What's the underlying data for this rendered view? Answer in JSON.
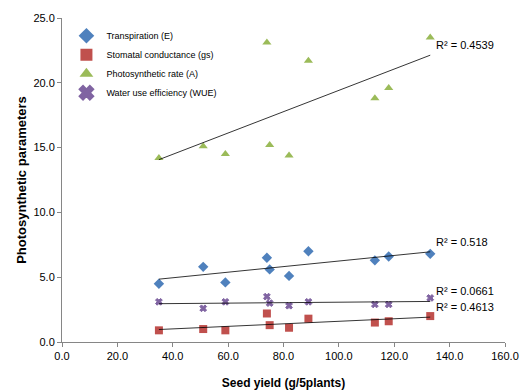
{
  "chart_data": {
    "type": "scatter",
    "x_label": "Seed yield (g/5plants)",
    "y_label": "Photosynthetic parameters",
    "xlim": [
      0,
      160
    ],
    "xticks": [
      {
        "value": 0,
        "label": "0.0"
      },
      {
        "value": 20,
        "label": "20.0"
      },
      {
        "value": 40,
        "label": "40.0"
      },
      {
        "value": 60,
        "label": "60.0"
      },
      {
        "value": 80,
        "label": "80.0"
      },
      {
        "value": 100,
        "label": "100.0"
      },
      {
        "value": 120,
        "label": "120.0"
      },
      {
        "value": 140,
        "label": "140.0"
      },
      {
        "value": 160,
        "label": "160.0"
      }
    ],
    "ylim": [
      0,
      25
    ],
    "yticks": [
      {
        "value": 0,
        "label": "0.0"
      },
      {
        "value": 5,
        "label": "5.0"
      },
      {
        "value": 10,
        "label": "10.0"
      },
      {
        "value": 15,
        "label": "15.0"
      },
      {
        "value": 20,
        "label": "20.0"
      },
      {
        "value": 25,
        "label": "25.0"
      }
    ],
    "grid": false,
    "legend": "upper left",
    "x": [
      35,
      51,
      59,
      74,
      75,
      82,
      89,
      113,
      118,
      133
    ],
    "series": [
      {
        "name": "Transpiration (E)",
        "color": "#4F81BD",
        "marker": "diamond",
        "values": [
          4.5,
          5.8,
          4.6,
          6.5,
          5.6,
          5.1,
          7.0,
          6.3,
          6.6,
          6.8
        ],
        "trendline_label": "R² = 0.518"
      },
      {
        "name": "Stomatal conductance (gs)",
        "color": "#C0504D",
        "marker": "square",
        "values": [
          0.9,
          1.0,
          0.9,
          2.2,
          1.3,
          1.1,
          1.8,
          1.5,
          1.6,
          2.0
        ],
        "trendline_label": "R² = 0.4613"
      },
      {
        "name": "Photosynthetic rate (A)",
        "color": "#9BBB59",
        "marker": "triangle-up",
        "values": [
          14.2,
          15.1,
          14.5,
          23.1,
          15.2,
          14.4,
          21.7,
          18.8,
          19.6,
          23.5
        ],
        "trendline_label": "R² = 0.4539"
      },
      {
        "name": "Water use efficiency (WUE)",
        "color": "#8064A2",
        "marker": "x",
        "values": [
          3.1,
          2.6,
          3.1,
          3.5,
          3.0,
          2.8,
          3.1,
          2.9,
          2.9,
          3.4
        ],
        "trendline_label": "R² = 0.0661"
      }
    ]
  }
}
